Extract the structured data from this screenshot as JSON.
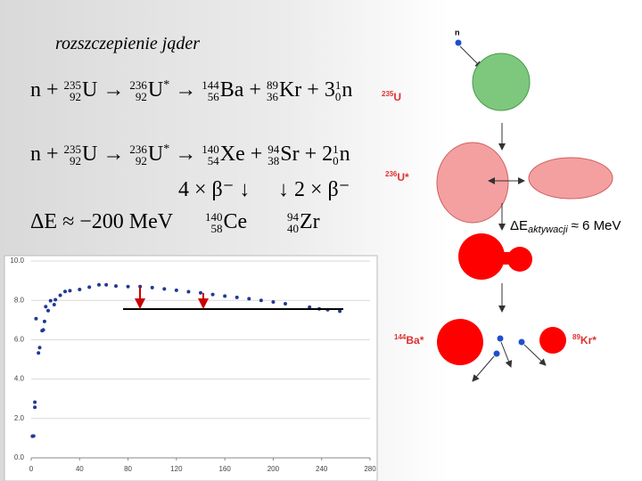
{
  "title": "rozszczepienie jąder",
  "equations": [
    {
      "terms": [
        {
          "sym": "n"
        },
        {
          "op": "+"
        },
        {
          "A": "235",
          "Z": "92",
          "sym": "U"
        },
        {
          "op": "→"
        },
        {
          "A": "236",
          "Z": "92",
          "sym": "U",
          "star": "*"
        },
        {
          "op": "→"
        },
        {
          "A": "144",
          "Z": "56",
          "sym": "Ba"
        },
        {
          "op": "+"
        },
        {
          "A": "89",
          "Z": "36",
          "sym": "Kr"
        },
        {
          "op": "+"
        },
        {
          "coef": "3",
          "A": "1",
          "Z": "0",
          "sym": "n"
        }
      ]
    },
    {
      "terms": [
        {
          "sym": "n"
        },
        {
          "op": "+"
        },
        {
          "A": "235",
          "Z": "92",
          "sym": "U"
        },
        {
          "op": "→"
        },
        {
          "A": "236",
          "Z": "92",
          "sym": "U",
          "star": "*"
        },
        {
          "op": "→"
        },
        {
          "A": "140",
          "Z": "54",
          "sym": "Xe"
        },
        {
          "op": "+"
        },
        {
          "A": "94",
          "Z": "38",
          "sym": "Sr"
        },
        {
          "op": "+"
        },
        {
          "coef": "2",
          "A": "1",
          "Z": "0",
          "sym": "n"
        }
      ]
    }
  ],
  "decays": [
    "4 × β⁻ ↓",
    "↓ 2 × β⁻"
  ],
  "energy": "ΔE ≈ −200 MeV",
  "products": [
    {
      "A": "140",
      "Z": "58",
      "sym": "Ce"
    },
    {
      "A": "94",
      "Z": "40",
      "sym": "Zr"
    }
  ],
  "diagram": {
    "neutron": "n",
    "u235": {
      "A": "235",
      "sym": "U"
    },
    "u236": {
      "A": "236",
      "sym": "U*"
    },
    "activation": {
      "symbol": "ΔE",
      "sub": "aktywacji",
      "rest": "≈ 6 MeV"
    },
    "ba": {
      "A": "144",
      "sym": "Ba*"
    },
    "kr": {
      "A": "89",
      "sym": "Kr*"
    }
  },
  "chart_data": {
    "type": "scatter",
    "color": "#1f3a93",
    "x": [
      1,
      2,
      3,
      3,
      4,
      6,
      7,
      9,
      10,
      11,
      12,
      14,
      16,
      19,
      20,
      24,
      28,
      32,
      40,
      48,
      56,
      62,
      70,
      80,
      90,
      100,
      110,
      120,
      130,
      140,
      150,
      160,
      170,
      180,
      190,
      200,
      210,
      230,
      238,
      245,
      255
    ],
    "values": [
      1.1,
      1.11,
      2.57,
      2.83,
      7.07,
      5.33,
      5.6,
      6.46,
      6.5,
      6.93,
      7.68,
      7.48,
      7.98,
      7.78,
      8.03,
      8.26,
      8.45,
      8.49,
      8.55,
      8.67,
      8.79,
      8.79,
      8.73,
      8.7,
      8.7,
      8.65,
      8.58,
      8.51,
      8.44,
      8.38,
      8.3,
      8.22,
      8.15,
      8.08,
      8.0,
      7.92,
      7.83,
      7.65,
      7.57,
      7.52,
      7.45
    ],
    "xlim": [
      0,
      280
    ],
    "xticks": [
      0,
      40,
      80,
      120,
      160,
      200,
      240,
      280
    ],
    "ylim": [
      0,
      10
    ],
    "yticks": [
      {
        "value": 0,
        "label": "0.0"
      },
      {
        "value": 2,
        "label": "2.0"
      },
      {
        "value": 4,
        "label": "4.0"
      },
      {
        "value": 6,
        "label": "6.0"
      },
      {
        "value": 8,
        "label": "8.0"
      },
      {
        "value": 10,
        "label": "10.0"
      }
    ],
    "grid": true
  }
}
